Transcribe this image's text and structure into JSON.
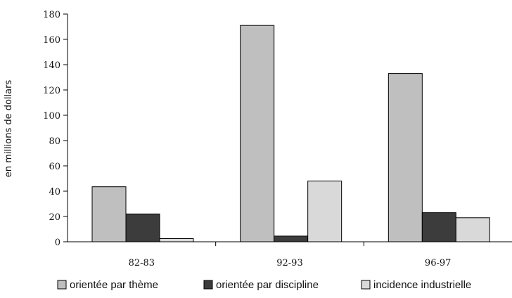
{
  "chart_data": {
    "type": "bar",
    "title": "",
    "xlabel": "",
    "ylabel": "en millions de dollars",
    "ylim": [
      0,
      180
    ],
    "yticks": [
      0,
      20,
      40,
      60,
      80,
      100,
      120,
      140,
      160,
      180
    ],
    "categories": [
      "82-83",
      "92-93",
      "96-97"
    ],
    "series": [
      {
        "name": "orientée par thème",
        "values": [
          43.5,
          171,
          133
        ],
        "color": "#bfbfbf"
      },
      {
        "name": "orientée par discipline",
        "values": [
          22,
          4.5,
          23
        ],
        "color": "#3c3c3c"
      },
      {
        "name": "incidence industrielle",
        "values": [
          2.5,
          48,
          19
        ],
        "color": "#d9d9d9"
      }
    ],
    "grid": false,
    "legend_position": "bottom"
  }
}
